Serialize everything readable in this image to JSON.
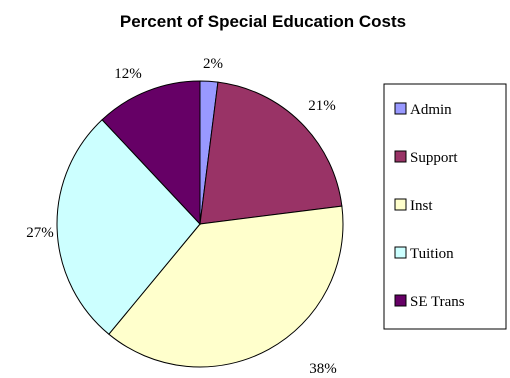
{
  "chart_data": {
    "type": "pie",
    "title": "Percent of Special Education Costs",
    "slices": [
      {
        "label": "Admin",
        "value": 2,
        "display": "2%",
        "color": "#9999ff"
      },
      {
        "label": "Support",
        "value": 21,
        "display": "21%",
        "color": "#993366"
      },
      {
        "label": "Inst",
        "value": 38,
        "display": "38%",
        "color": "#ffffcc"
      },
      {
        "label": "Tuition",
        "value": 27,
        "display": "27%",
        "color": "#ccffff"
      },
      {
        "label": "SE Trans",
        "value": 12,
        "display": "12%",
        "color": "#660066"
      }
    ],
    "legend_position": "right"
  }
}
